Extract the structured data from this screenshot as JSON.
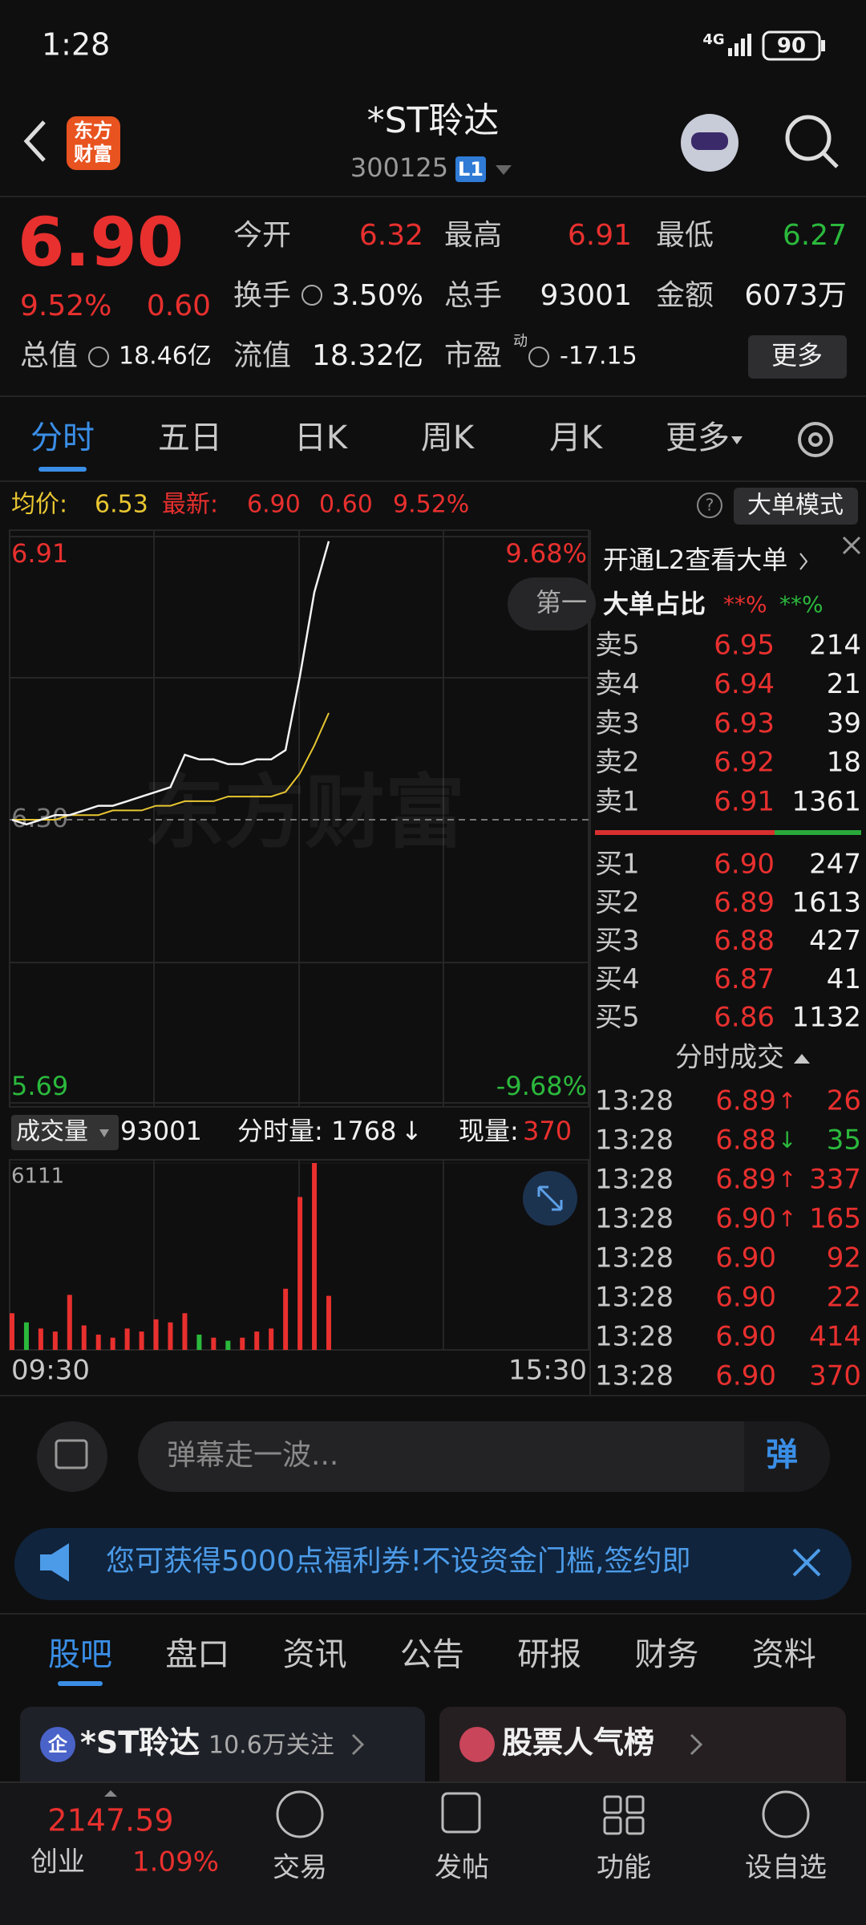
{
  "status": {
    "time": "1:28",
    "network": "4G",
    "battery": "90"
  },
  "header": {
    "logo_top": "东方",
    "logo_bottom": "财富",
    "name": "*ST聆达",
    "code": "300125",
    "level": "L1"
  },
  "quote": {
    "price": "6.90",
    "pct": "9.52%",
    "chg": "0.60",
    "open_label": "今开",
    "open": "6.32",
    "high_label": "最高",
    "high": "6.91",
    "low_label": "最低",
    "low": "6.27",
    "turnover_label": "换手",
    "turnover": "3.50%",
    "volume_label": "总手",
    "volume": "93001",
    "amount_label": "金额",
    "amount": "6073万",
    "mcap_label": "总值",
    "mcap": "18.46亿",
    "float_label": "流值",
    "float": "18.32亿",
    "pe_label": "市盈",
    "pe_tag": "动",
    "pe": "-17.15",
    "more": "更多"
  },
  "tabs": [
    "分时",
    "五日",
    "日K",
    "周K",
    "月K",
    "更多"
  ],
  "info": {
    "avg_label": "均价:",
    "avg": "6.53",
    "last_label": "最新:",
    "last": "6.90",
    "chg": "0.60",
    "pct": "9.52%",
    "mode": "大单模式"
  },
  "chart": {
    "ylim": [
      5.69,
      6.91
    ],
    "yticks": [
      5.69,
      {
        "value": 6.3,
        "label": "6.30"
      },
      6.91
    ],
    "pct_top": "9.68%",
    "pct_bottom": "-9.68%",
    "price": [
      6.3,
      6.29,
      6.3,
      6.31,
      6.31,
      6.32,
      6.33,
      6.33,
      6.34,
      6.35,
      6.36,
      6.37,
      6.44,
      6.43,
      6.43,
      6.42,
      6.42,
      6.43,
      6.43,
      6.45,
      6.61,
      6.79,
      6.9
    ],
    "avg": [
      6.3,
      6.3,
      6.3,
      6.3,
      6.31,
      6.31,
      6.31,
      6.32,
      6.32,
      6.32,
      6.33,
      6.33,
      6.34,
      6.34,
      6.34,
      6.35,
      6.35,
      6.35,
      6.35,
      6.36,
      6.4,
      6.46,
      6.53
    ],
    "watermark": "东方财富",
    "popup": "第一",
    "vol_label": "成交量",
    "vol_total": "93001",
    "minute_label": "分时量:",
    "minute": "1768",
    "minute_arrow": "↓",
    "now_label": "现量:",
    "now": "370",
    "vol_ylim": [
      0,
      6111
    ],
    "vol_yticks": [
      6111
    ],
    "volume": [
      1200,
      900,
      700,
      600,
      1800,
      800,
      500,
      400,
      700,
      600,
      1000,
      900,
      1200,
      500,
      400,
      300,
      400,
      600,
      700,
      2000,
      5000,
      6111,
      1768
    ],
    "x_start": "09:30",
    "x_end": "15:30"
  },
  "book": {
    "l2": "开通L2查看大单",
    "ratio_label": "大单占比",
    "ratio_sell": "**%",
    "ratio_buy": "**%",
    "asks": [
      {
        "label": "卖5",
        "price": "6.95",
        "vol": "214"
      },
      {
        "label": "卖4",
        "price": "6.94",
        "vol": "21"
      },
      {
        "label": "卖3",
        "price": "6.93",
        "vol": "39"
      },
      {
        "label": "卖2",
        "price": "6.92",
        "vol": "18"
      },
      {
        "label": "卖1",
        "price": "6.91",
        "vol": "1361"
      }
    ],
    "bids": [
      {
        "label": "买1",
        "price": "6.90",
        "vol": "247"
      },
      {
        "label": "买2",
        "price": "6.89",
        "vol": "1613"
      },
      {
        "label": "买3",
        "price": "6.88",
        "vol": "427"
      },
      {
        "label": "买4",
        "price": "6.87",
        "vol": "41"
      },
      {
        "label": "买5",
        "price": "6.86",
        "vol": "1132"
      }
    ],
    "trades_title": "分时成交",
    "trades": [
      {
        "time": "13:28",
        "price": "6.89",
        "arrow": "↑",
        "vol": "26"
      },
      {
        "time": "13:28",
        "price": "6.88",
        "arrow": "↓",
        "vol": "35"
      },
      {
        "time": "13:28",
        "price": "6.89",
        "arrow": "↑",
        "vol": "337"
      },
      {
        "time": "13:28",
        "price": "6.90",
        "arrow": "↑",
        "vol": "165"
      },
      {
        "time": "13:28",
        "price": "6.90",
        "vol": "92"
      },
      {
        "time": "13:28",
        "price": "6.90",
        "vol": "22"
      },
      {
        "time": "13:28",
        "price": "6.90",
        "vol": "414"
      },
      {
        "time": "13:28",
        "price": "6.90",
        "vol": "370"
      }
    ]
  },
  "danmaku": {
    "placeholder": "弹幕走一波...",
    "button": "弹"
  },
  "banner": "您可获得5000点福利券!不设资金门槛,签约即",
  "subtabs": [
    "股吧",
    "盘口",
    "资讯",
    "公告",
    "研报",
    "财务",
    "资料"
  ],
  "cards": [
    {
      "icon": "企",
      "title": "*ST聆达",
      "sub": "10.6万关注"
    },
    {
      "title": "股票人气榜"
    }
  ],
  "nav": {
    "index_name": "创业",
    "index_value": "2147.59",
    "index_pct": "1.09%",
    "items": [
      "交易",
      "发帖",
      "功能",
      "设自选"
    ]
  }
}
